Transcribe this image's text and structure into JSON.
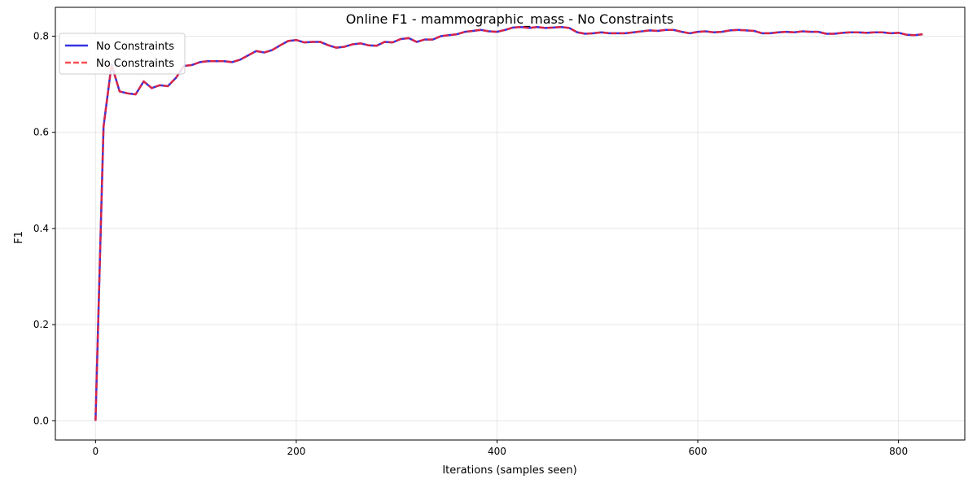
{
  "chart_data": {
    "type": "line",
    "title": "Online F1 - mammographic_mass - No Constraints",
    "xlabel": "Iterations (samples seen)",
    "ylabel": "F1",
    "xlim": [
      -40,
      866
    ],
    "ylim": [
      -0.04,
      0.86
    ],
    "xticks": [
      0,
      200,
      400,
      600,
      800
    ],
    "xtick_labels": [
      "0",
      "200",
      "400",
      "600",
      "800"
    ],
    "yticks": [
      0.0,
      0.2,
      0.4,
      0.6,
      0.8
    ],
    "ytick_labels": [
      "0.0",
      "0.2",
      "0.4",
      "0.6",
      "0.8"
    ],
    "grid": true,
    "legend_position": "top-left",
    "x": [
      0,
      8,
      16,
      24,
      32,
      40,
      48,
      56,
      64,
      72,
      80,
      88,
      96,
      104,
      112,
      120,
      128,
      136,
      144,
      152,
      160,
      168,
      176,
      184,
      192,
      200,
      208,
      216,
      224,
      232,
      240,
      248,
      256,
      264,
      272,
      280,
      288,
      296,
      304,
      312,
      320,
      328,
      336,
      344,
      352,
      360,
      368,
      376,
      384,
      392,
      400,
      408,
      416,
      424,
      432,
      440,
      448,
      456,
      464,
      472,
      480,
      488,
      496,
      504,
      512,
      520,
      528,
      536,
      544,
      552,
      560,
      568,
      576,
      584,
      592,
      600,
      608,
      616,
      624,
      632,
      640,
      648,
      656,
      664,
      672,
      680,
      688,
      696,
      704,
      712,
      720,
      728,
      736,
      744,
      752,
      760,
      768,
      776,
      784,
      792,
      800,
      808,
      816,
      824
    ],
    "series": [
      {
        "name": "No Constraints",
        "color": "#0000dd",
        "style": "solid",
        "values": [
          0.0,
          0.612,
          0.741,
          0.685,
          0.681,
          0.679,
          0.706,
          0.692,
          0.698,
          0.696,
          0.713,
          0.738,
          0.74,
          0.746,
          0.748,
          0.748,
          0.748,
          0.746,
          0.751,
          0.76,
          0.769,
          0.766,
          0.771,
          0.781,
          0.79,
          0.792,
          0.787,
          0.788,
          0.788,
          0.781,
          0.776,
          0.778,
          0.783,
          0.785,
          0.781,
          0.78,
          0.788,
          0.787,
          0.794,
          0.796,
          0.788,
          0.793,
          0.793,
          0.8,
          0.802,
          0.804,
          0.809,
          0.811,
          0.813,
          0.81,
          0.809,
          0.813,
          0.818,
          0.819,
          0.817,
          0.819,
          0.817,
          0.818,
          0.819,
          0.817,
          0.808,
          0.805,
          0.806,
          0.808,
          0.806,
          0.806,
          0.806,
          0.808,
          0.81,
          0.812,
          0.811,
          0.813,
          0.813,
          0.809,
          0.806,
          0.809,
          0.81,
          0.808,
          0.809,
          0.812,
          0.813,
          0.812,
          0.811,
          0.806,
          0.806,
          0.808,
          0.809,
          0.808,
          0.81,
          0.809,
          0.809,
          0.805,
          0.805,
          0.807,
          0.808,
          0.808,
          0.807,
          0.808,
          0.808,
          0.806,
          0.807,
          0.803,
          0.802,
          0.804
        ]
      },
      {
        "name": "No Constraints",
        "color": "#ff2222",
        "style": "dashed",
        "values": [
          0.0,
          0.612,
          0.741,
          0.685,
          0.681,
          0.679,
          0.706,
          0.692,
          0.698,
          0.696,
          0.713,
          0.738,
          0.74,
          0.746,
          0.748,
          0.748,
          0.748,
          0.746,
          0.751,
          0.76,
          0.769,
          0.766,
          0.771,
          0.781,
          0.79,
          0.792,
          0.787,
          0.788,
          0.788,
          0.781,
          0.776,
          0.778,
          0.783,
          0.785,
          0.781,
          0.78,
          0.788,
          0.787,
          0.794,
          0.796,
          0.788,
          0.793,
          0.793,
          0.8,
          0.802,
          0.804,
          0.809,
          0.811,
          0.813,
          0.81,
          0.809,
          0.813,
          0.818,
          0.819,
          0.817,
          0.819,
          0.817,
          0.818,
          0.819,
          0.817,
          0.808,
          0.805,
          0.806,
          0.808,
          0.806,
          0.806,
          0.806,
          0.808,
          0.81,
          0.812,
          0.811,
          0.813,
          0.813,
          0.809,
          0.806,
          0.809,
          0.81,
          0.808,
          0.809,
          0.812,
          0.813,
          0.812,
          0.811,
          0.806,
          0.806,
          0.808,
          0.809,
          0.808,
          0.81,
          0.809,
          0.809,
          0.805,
          0.805,
          0.807,
          0.808,
          0.808,
          0.807,
          0.808,
          0.808,
          0.806,
          0.807,
          0.803,
          0.802,
          0.804
        ]
      }
    ]
  }
}
